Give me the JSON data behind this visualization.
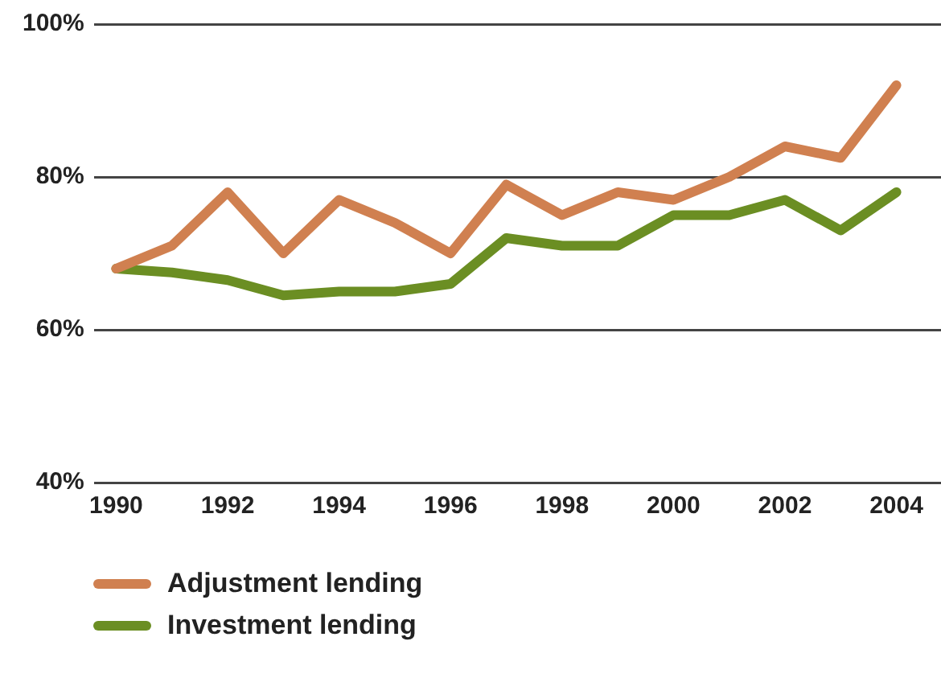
{
  "chart_data": {
    "type": "line",
    "x": [
      1990,
      1991,
      1992,
      1993,
      1994,
      1995,
      1996,
      1997,
      1998,
      1999,
      2000,
      2001,
      2002,
      2003,
      2004
    ],
    "series": [
      {
        "name": "Adjustment lending",
        "color": "#d08050",
        "values": [
          68,
          71,
          78,
          70,
          77,
          74,
          70,
          79,
          75,
          78,
          77,
          80,
          84,
          82.5,
          92
        ]
      },
      {
        "name": "Investment lending",
        "color": "#6b8e23",
        "values": [
          68,
          67.5,
          66.5,
          64.5,
          65,
          65,
          66,
          72,
          71,
          71,
          75,
          75,
          77,
          73,
          78
        ]
      }
    ],
    "xlim": [
      1989.6,
      2004.8
    ],
    "xticks": [
      1990,
      1992,
      1994,
      1996,
      1998,
      2000,
      2002,
      2004
    ],
    "ylim": [
      40,
      100
    ],
    "yticks": [
      {
        "value": 40,
        "label": "40%"
      },
      {
        "value": 60,
        "label": "60%"
      },
      {
        "value": 80,
        "label": "80%"
      },
      {
        "value": 100,
        "label": "100%"
      }
    ],
    "grid": "y",
    "legend": "bottom",
    "marker": "none",
    "line_style": "solid"
  }
}
